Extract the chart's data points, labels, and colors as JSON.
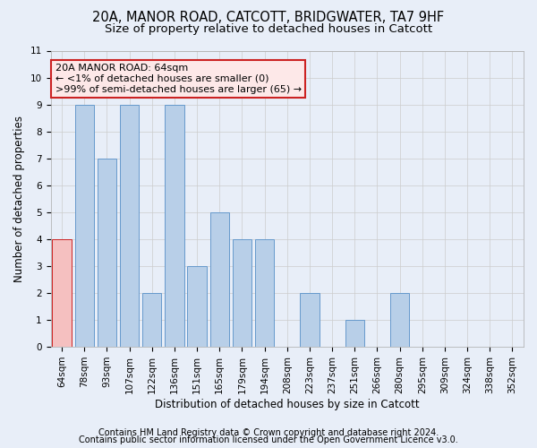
{
  "title_line1": "20A, MANOR ROAD, CATCOTT, BRIDGWATER, TA7 9HF",
  "title_line2": "Size of property relative to detached houses in Catcott",
  "xlabel": "Distribution of detached houses by size in Catcott",
  "ylabel": "Number of detached properties",
  "categories": [
    "64sqm",
    "78sqm",
    "93sqm",
    "107sqm",
    "122sqm",
    "136sqm",
    "151sqm",
    "165sqm",
    "179sqm",
    "194sqm",
    "208sqm",
    "223sqm",
    "237sqm",
    "251sqm",
    "266sqm",
    "280sqm",
    "295sqm",
    "309sqm",
    "324sqm",
    "338sqm",
    "352sqm"
  ],
  "values": [
    4,
    9,
    7,
    9,
    2,
    9,
    3,
    5,
    4,
    4,
    0,
    2,
    0,
    1,
    0,
    2,
    0,
    0,
    0,
    0,
    0
  ],
  "bar_color": "#b8cfe8",
  "bar_edge_color": "#6699cc",
  "highlight_index": 0,
  "highlight_color": "#f5c0c0",
  "highlight_edge_color": "#cc2222",
  "annotation_line1": "20A MANOR ROAD: 64sqm",
  "annotation_line2": "← <1% of detached houses are smaller (0)",
  "annotation_line3": ">99% of semi-detached houses are larger (65) →",
  "annotation_box_color": "#fde8e8",
  "annotation_box_edge_color": "#cc2222",
  "ylim": [
    0,
    11
  ],
  "yticks": [
    0,
    1,
    2,
    3,
    4,
    5,
    6,
    7,
    8,
    9,
    10,
    11
  ],
  "grid_color": "#cccccc",
  "background_color": "#e8eef8",
  "footer_line1": "Contains HM Land Registry data © Crown copyright and database right 2024.",
  "footer_line2": "Contains public sector information licensed under the Open Government Licence v3.0.",
  "title_fontsize": 10.5,
  "subtitle_fontsize": 9.5,
  "axis_label_fontsize": 8.5,
  "tick_fontsize": 7.5,
  "annotation_fontsize": 8,
  "footer_fontsize": 7
}
